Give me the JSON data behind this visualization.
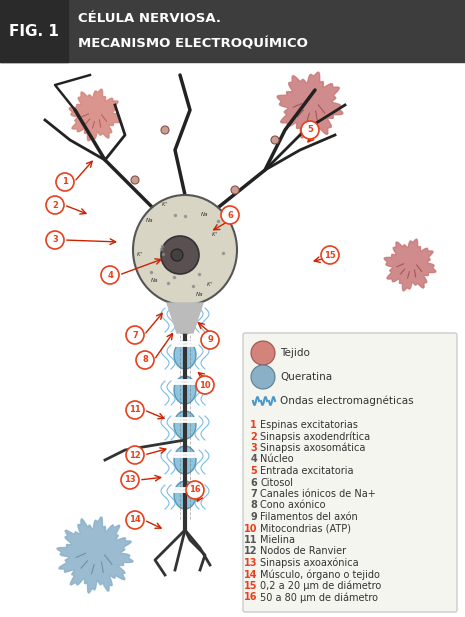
{
  "title_fig": "FIG. 1",
  "title_main": "CÉLULA NERVIOSA.\nMECANISMO ELECTROQUÍMICO",
  "header_bg": "#3d3d3d",
  "header_text_color": "#ffffff",
  "body_bg": "#ffffff",
  "legend_items_icon": [
    "Tejido",
    "Queratina",
    "Ondas electromagnéticas"
  ],
  "legend_numbered": [
    [
      1,
      "Espinas excitatorias"
    ],
    [
      2,
      "Sinapsis axodendrítica"
    ],
    [
      3,
      "Sinapsis axosomática"
    ],
    [
      4,
      "Núcleo"
    ],
    [
      5,
      "Entrada excitatoria"
    ],
    [
      6,
      "Citosol"
    ],
    [
      7,
      "Canales iónicos de Na+"
    ],
    [
      8,
      "Cono axónico"
    ],
    [
      9,
      "Filamentos del axón"
    ],
    [
      10,
      "Mitocondrias (ATP)"
    ],
    [
      11,
      "Mielina"
    ],
    [
      12,
      "Nodos de Ranvier"
    ],
    [
      13,
      "Sinapsis axoaxónica"
    ],
    [
      14,
      "Músculo, órgano o tejido"
    ],
    [
      15,
      "0,2 a 20 μm de diámetro"
    ],
    [
      16,
      "50 a 80 μm de diámetro"
    ]
  ],
  "label_color_odd": "#e8401c",
  "label_color_even": "#4a4a4a",
  "arrow_color": "#cc2200",
  "ion_color": "#333333",
  "axon_color": "#222222",
  "myelin_color": "#6ab0d4",
  "cell_body_color": "#c8c8c8",
  "nucleus_color": "#555555",
  "tissue_color_pink": "#d4837a",
  "tissue_color_blue": "#8ab0c8"
}
